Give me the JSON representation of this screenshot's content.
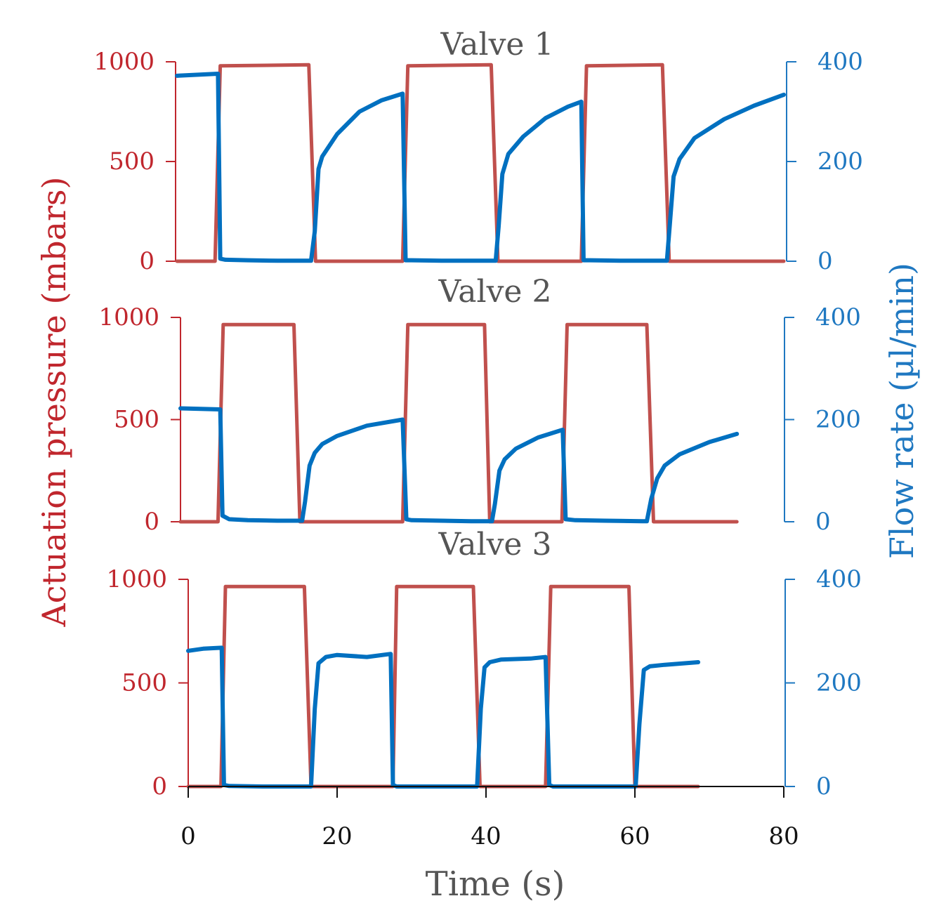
{
  "chart_data": {
    "type": "line",
    "xlabel": "Time (s)",
    "ylabel_left": "Actuation pressure (mbars)",
    "ylabel_right": "Flow rate (µl/min)",
    "xlim": [
      0,
      80
    ],
    "x_ticks": [
      "0",
      "20",
      "40",
      "60",
      "80"
    ],
    "ylim_left": [
      0,
      1000
    ],
    "ylim_right": [
      0,
      400
    ],
    "left_ticks": [
      "0",
      "500",
      "1000"
    ],
    "right_ticks": [
      "0",
      "200",
      "400"
    ],
    "colors": {
      "pressure": "#c0504d",
      "flow": "#0070c0",
      "left_axis": "#c0262d",
      "right_axis": "#1f78c1"
    },
    "panels": [
      {
        "title": "Valve 1",
        "series": [
          {
            "role": "pressure",
            "x": [
              -1.5,
              3.6,
              4.3,
              16.2,
              17.1,
              28.8,
              29.5,
              40.7,
              41.6,
              52.8,
              53.5,
              63.7,
              64.6,
              80
            ],
            "y": [
              0,
              0,
              980,
              985,
              0,
              0,
              980,
              985,
              0,
              0,
              980,
              985,
              0,
              0
            ]
          },
          {
            "role": "flow",
            "x": [
              -1.5,
              4.0,
              4.3,
              5,
              8,
              12,
              16,
              16.5,
              17.0,
              17.5,
              18,
              20,
              23,
              26,
              28.8,
              29.2,
              30,
              34,
              38,
              41.3,
              41.7,
              42.2,
              43,
              45,
              48,
              51,
              52.8,
              53.1,
              54,
              58,
              62,
              64.3,
              64.7,
              65.2,
              66,
              68,
              72,
              76,
              80
            ],
            "y": [
              372,
              376,
              5,
              3,
              2,
              1,
              1,
              1,
              60,
              185,
              210,
              255,
              300,
              323,
              336,
              2,
              2,
              1,
              1,
              1,
              70,
              175,
              215,
              250,
              287,
              310,
              320,
              2,
              2,
              1,
              1,
              1,
              75,
              170,
              205,
              247,
              285,
              312,
              334
            ]
          }
        ]
      },
      {
        "title": "Valve 2",
        "series": [
          {
            "role": "pressure",
            "x": [
              -1.5,
              4.0,
              4.7,
              14.2,
              15.0,
              28.8,
              29.5,
              39.8,
              40.5,
              50.2,
              50.9,
              61.6,
              62.5,
              73.7
            ],
            "y": [
              0,
              0,
              965,
              965,
              0,
              0,
              965,
              965,
              0,
              0,
              965,
              965,
              0,
              0
            ]
          },
          {
            "role": "flow",
            "x": [
              -1.5,
              4.3,
              4.6,
              5.5,
              8,
              12,
              15.3,
              15.7,
              16.3,
              17,
              18,
              20,
              24,
              28.8,
              29.3,
              30,
              34,
              38,
              40.8,
              41.2,
              41.8,
              42.5,
              44,
              47,
              50.3,
              50.7,
              52,
              56,
              61.0,
              61.6,
              62.2,
              63,
              64,
              66,
              70,
              73.7
            ],
            "y": [
              222,
              220,
              12,
              5,
              3,
              2,
              2,
              40,
              110,
              135,
              152,
              168,
              188,
              200,
              5,
              3,
              2,
              1,
              1,
              35,
              100,
              122,
              143,
              165,
              180,
              5,
              3,
              2,
              1,
              1,
              45,
              85,
              110,
              132,
              156,
              172
            ]
          }
        ]
      },
      {
        "title": "Valve 3",
        "series": [
          {
            "role": "pressure",
            "x": [
              0,
              4.4,
              5.0,
              15.6,
              16.5,
              27.5,
              28.0,
              38.3,
              39.2,
              48.0,
              48.7,
              59.2,
              60.0,
              68.5
            ],
            "y": [
              0,
              0,
              965,
              965,
              0,
              0,
              965,
              965,
              0,
              0,
              965,
              965,
              0,
              0
            ]
          },
          {
            "role": "flow",
            "x": [
              0,
              2,
              4.5,
              4.8,
              5.5,
              10,
              16.5,
              17.0,
              17.5,
              18.5,
              20,
              24,
              27.2,
              27.5,
              28,
              32,
              38.8,
              39.3,
              39.8,
              40.5,
              42,
              46,
              48.0,
              48.5,
              49,
              54,
              60.1,
              60.6,
              61.2,
              62,
              64,
              68.5
            ],
            "y": [
              262,
              266,
              268,
              3,
              1,
              0,
              0,
              150,
              238,
              250,
              254,
              250,
              256,
              3,
              0,
              0,
              0,
              150,
              230,
              240,
              245,
              247,
              250,
              3,
              0,
              0,
              0,
              120,
              225,
              232,
              235,
              240
            ]
          }
        ]
      }
    ]
  }
}
